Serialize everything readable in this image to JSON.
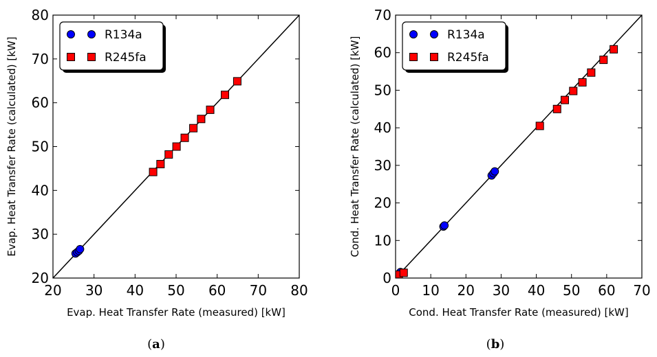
{
  "chart_data": [
    {
      "type": "scatter",
      "caption_letter": "a",
      "xlabel": "Evap. Heat Transfer Rate (measured) [kW]",
      "ylabel": "Evap. Heat Transfer Rate (calculated) [kW]",
      "xlim": [
        20,
        80
      ],
      "ylim": [
        20,
        80
      ],
      "xticks": [
        20,
        30,
        40,
        50,
        60,
        70,
        80
      ],
      "yticks": [
        20,
        30,
        40,
        50,
        60,
        70,
        80
      ],
      "reference_line": {
        "x": [
          20,
          80
        ],
        "y": [
          20,
          80
        ]
      },
      "legend_position": "upper-left",
      "grid": false,
      "series": [
        {
          "name": "R134a",
          "marker": "circle",
          "color": "#0000ff",
          "points": [
            [
              25.5,
              25.6
            ],
            [
              25.9,
              25.9
            ],
            [
              26.3,
              26.2
            ],
            [
              26.6,
              26.6
            ]
          ]
        },
        {
          "name": "R245fa",
          "marker": "square",
          "color": "#ff0000",
          "points": [
            [
              44.4,
              44.2
            ],
            [
              46.2,
              46.0
            ],
            [
              48.2,
              48.2
            ],
            [
              50.1,
              50.0
            ],
            [
              52.1,
              52.0
            ],
            [
              54.2,
              54.2
            ],
            [
              56.1,
              56.3
            ],
            [
              58.3,
              58.4
            ],
            [
              61.9,
              61.8
            ],
            [
              64.9,
              64.9
            ]
          ]
        }
      ]
    },
    {
      "type": "scatter",
      "caption_letter": "b",
      "xlabel": "Cond. Heat Transfer Rate (measured) [kW]",
      "ylabel": "Cond. Heat Transfer Rate (calculated) [kW]",
      "xlim": [
        0,
        70
      ],
      "ylim": [
        0,
        70
      ],
      "xticks": [
        0,
        10,
        20,
        30,
        40,
        50,
        60,
        70
      ],
      "yticks": [
        0,
        10,
        20,
        30,
        40,
        50,
        60,
        70
      ],
      "reference_line": {
        "x": [
          0,
          70
        ],
        "y": [
          0,
          70
        ]
      },
      "legend_position": "upper-left",
      "grid": false,
      "series": [
        {
          "name": "R134a",
          "marker": "circle",
          "color": "#0000ff",
          "points": [
            [
              0.8,
              0.9
            ],
            [
              1.4,
              1.6
            ],
            [
              13.6,
              13.7
            ],
            [
              13.9,
              14.0
            ],
            [
              27.3,
              27.3
            ],
            [
              27.8,
              27.9
            ],
            [
              28.2,
              28.4
            ]
          ]
        },
        {
          "name": "R245fa",
          "marker": "square",
          "color": "#ff0000",
          "points": [
            [
              0.9,
              0.9
            ],
            [
              2.3,
              1.4
            ],
            [
              41.0,
              40.5
            ],
            [
              45.9,
              45.0
            ],
            [
              48.1,
              47.4
            ],
            [
              50.5,
              49.8
            ],
            [
              53.1,
              52.1
            ],
            [
              55.6,
              54.7
            ],
            [
              59.1,
              58.1
            ],
            [
              62.0,
              60.9
            ]
          ]
        }
      ]
    }
  ]
}
